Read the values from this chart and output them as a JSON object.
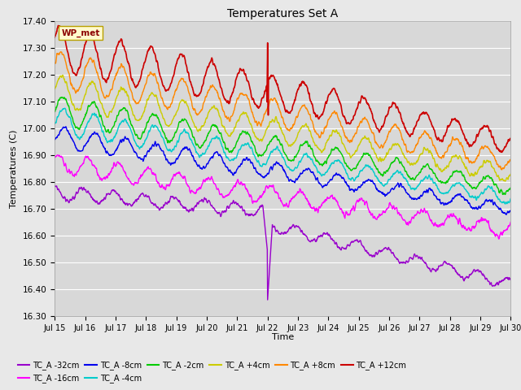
{
  "title": "Temperatures Set A",
  "xlabel": "Time",
  "ylabel": "Temperatures (C)",
  "ylim": [
    16.3,
    17.4
  ],
  "yticks": [
    16.3,
    16.4,
    16.5,
    16.6,
    16.7,
    16.8,
    16.9,
    17.0,
    17.1,
    17.2,
    17.3,
    17.4
  ],
  "xtick_labels": [
    "Jul 15",
    "Jul 16",
    "Jul 17",
    "Jul 18",
    "Jul 19",
    "Jul 20",
    "Jul 21",
    "Jul 22",
    "Jul 23",
    "Jul 24",
    "Jul 25",
    "Jul 26",
    "Jul 27",
    "Jul 28",
    "Jul 29",
    "Jul 30"
  ],
  "series_colors": {
    "TC_A -32cm": "#9900CC",
    "TC_A -16cm": "#FF00FF",
    "TC_A -8cm": "#0000EE",
    "TC_A -4cm": "#00CCCC",
    "TC_A -2cm": "#00CC00",
    "TC_A +4cm": "#CCCC00",
    "TC_A +8cm": "#FF8800",
    "TC_A +12cm": "#CC0000"
  },
  "background_color": "#E8E8E8",
  "plot_bg_color": "#D8D8D8"
}
